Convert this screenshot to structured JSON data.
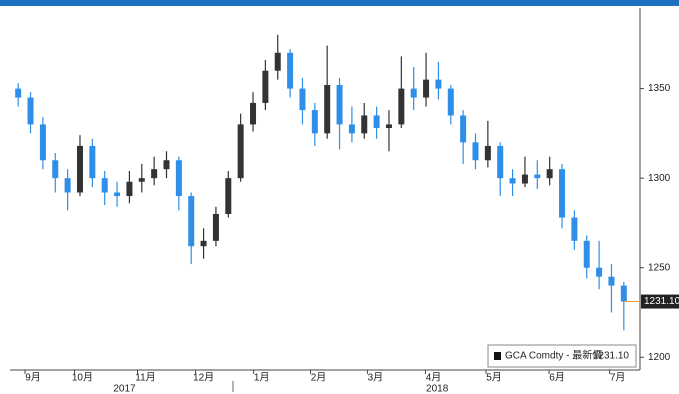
{
  "chart_data": {
    "type": "candlestick",
    "x": [
      0.5,
      1.5,
      2.5,
      3.5,
      4.5,
      5.5,
      6.5,
      7.5,
      8.5,
      9.5,
      10.5,
      11.5,
      12.5,
      13.5,
      14.5,
      15.5,
      16.5,
      17.5,
      18.5,
      19.5,
      20.5,
      21.5,
      22.5,
      23.5,
      24.5,
      25.5,
      26.5,
      27.5,
      28.5,
      29.5,
      30.5,
      31.5,
      32.5,
      33.5,
      34.5,
      35.5,
      36.5,
      37.5,
      38.5,
      39.5,
      40.5,
      41.5,
      42.5,
      43.5,
      44.5,
      45.5,
      46.5,
      47.5,
      48.5,
      49.5
    ],
    "open": [
      1350,
      1345,
      1330,
      1310,
      1300,
      1292,
      1318,
      1300,
      1292,
      1290,
      1298,
      1300,
      1305,
      1310,
      1290,
      1262,
      1265,
      1280,
      1300,
      1330,
      1342,
      1360,
      1370,
      1350,
      1338,
      1325,
      1352,
      1330,
      1325,
      1335,
      1328,
      1330,
      1350,
      1345,
      1355,
      1350,
      1335,
      1320,
      1310,
      1318,
      1300,
      1297,
      1302,
      1300,
      1305,
      1278,
      1265,
      1250,
      1245,
      1240
    ],
    "high": [
      1353,
      1348,
      1334,
      1314,
      1305,
      1324,
      1322,
      1304,
      1298,
      1304,
      1308,
      1312,
      1315,
      1312,
      1292,
      1272,
      1284,
      1304,
      1336,
      1348,
      1366,
      1380,
      1372,
      1356,
      1342,
      1374,
      1356,
      1340,
      1342,
      1340,
      1338,
      1368,
      1362,
      1370,
      1365,
      1352,
      1338,
      1325,
      1332,
      1320,
      1305,
      1312,
      1310,
      1312,
      1308,
      1282,
      1268,
      1265,
      1252,
      1242
    ],
    "low": [
      1340,
      1325,
      1305,
      1292,
      1282,
      1290,
      1295,
      1285,
      1284,
      1286,
      1292,
      1296,
      1300,
      1282,
      1252,
      1255,
      1262,
      1278,
      1298,
      1326,
      1338,
      1355,
      1345,
      1330,
      1318,
      1322,
      1316,
      1320,
      1322,
      1322,
      1315,
      1328,
      1338,
      1340,
      1344,
      1330,
      1308,
      1305,
      1306,
      1290,
      1290,
      1295,
      1294,
      1296,
      1272,
      1260,
      1244,
      1238,
      1225,
      1215
    ],
    "close": [
      1345,
      1330,
      1310,
      1300,
      1292,
      1318,
      1300,
      1292,
      1290,
      1298,
      1300,
      1305,
      1310,
      1290,
      1262,
      1265,
      1280,
      1300,
      1330,
      1342,
      1360,
      1370,
      1350,
      1338,
      1325,
      1352,
      1330,
      1325,
      1335,
      1328,
      1330,
      1350,
      1345,
      1355,
      1350,
      1335,
      1320,
      1310,
      1318,
      1300,
      1297,
      1302,
      1300,
      1305,
      1278,
      1265,
      1250,
      1245,
      1240,
      1231.1
    ],
    "up_color": "#333333",
    "down_color": "#2f8fe8",
    "xlim": [
      0,
      50
    ],
    "xticks": [
      {
        "value": 1.7,
        "label": "9月"
      },
      {
        "value": 5.7,
        "label": "10月"
      },
      {
        "value": 10.8,
        "label": "11月"
      },
      {
        "value": 15.5,
        "label": "12月"
      },
      {
        "value": 20.2,
        "label": "1月"
      },
      {
        "value": 24.8,
        "label": "2月"
      },
      {
        "value": 29.4,
        "label": "3月"
      },
      {
        "value": 34.1,
        "label": "4月"
      },
      {
        "value": 39,
        "label": "5月"
      },
      {
        "value": 44.1,
        "label": "6月"
      },
      {
        "value": 49,
        "label": "7月"
      }
    ],
    "year_labels": [
      {
        "value": 9.1,
        "label": "2017"
      },
      {
        "value": 34.4,
        "label": "2018"
      }
    ],
    "ylim": [
      1194,
      1395
    ],
    "yticks": [
      1200,
      1250,
      1300,
      1350
    ],
    "legend_label": "GCA Comdty - 最新價",
    "last_value": 1231.1,
    "last_value_label": "1231.10"
  }
}
